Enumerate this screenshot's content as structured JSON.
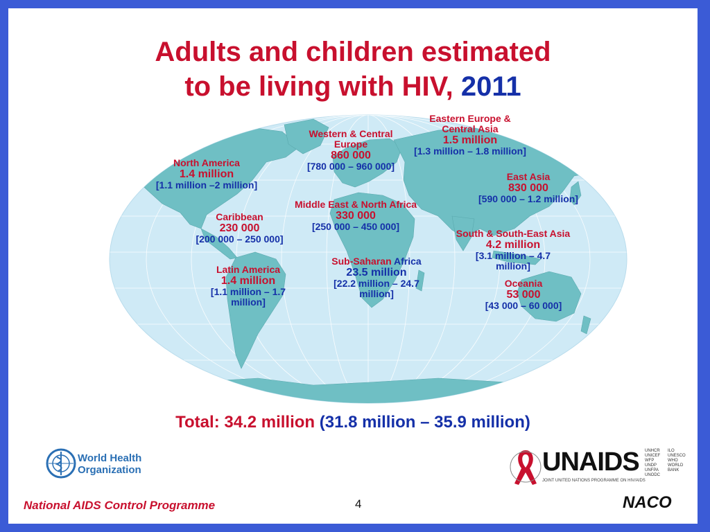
{
  "title": {
    "line1": "Adults and children estimated",
    "line2": "to be living with HIV,",
    "year": "2011"
  },
  "regions": [
    {
      "name": "North America",
      "value": "1.4 million",
      "range": "[1.1 million –2 million]"
    },
    {
      "name": "Caribbean",
      "value": "230 000",
      "range": "[200 000 – 250 000]"
    },
    {
      "name": "Latin America",
      "value": "1.4 million",
      "range": "[1.1 million – 1.7 million]"
    },
    {
      "name": "Western & Central Europe",
      "value": "860 000",
      "range": "[780 000 – 960 000]"
    },
    {
      "name": "Middle East & North Africa",
      "value": "330 000",
      "range": "[250 000 – 450 000]"
    },
    {
      "name": "Sub-Saharan",
      "name_suffix": "Africa",
      "value": "23.5 million",
      "range": "[22.2 million – 24.7 million]"
    },
    {
      "name": "Eastern Europe & Central Asia",
      "value": "1.5 million",
      "range": "[1.3 million – 1.8 million]"
    },
    {
      "name": "East Asia",
      "value": "830 000",
      "range": "[590 000 – 1.2 million]"
    },
    {
      "name": "South & South-East Asia",
      "value": "4.2 million",
      "range": "[3.1 million – 4.7 million]"
    },
    {
      "name": "Oceania",
      "value": "53 000",
      "range": "[43 000 – 60 000]"
    }
  ],
  "total": {
    "label": "Total:",
    "value": "34.2 million",
    "range": "(31.8 million – 35.9 million)"
  },
  "logos": {
    "who": {
      "line1": "World Health",
      "line2": "Organization"
    },
    "unaids": {
      "name": "UNAIDS",
      "subtitle": "JOINT UNITED NATIONS PROGRAMME ON HIV/AIDS",
      "cosponsors": [
        "UNHCR",
        "UNICEF",
        "WFP",
        "UNDP",
        "UNFPA",
        "UNODC",
        "ILO",
        "UNESCO",
        "WHO",
        "WORLD BANK"
      ]
    },
    "naco": "NACO"
  },
  "footer": {
    "program": "National AIDS Control Programme",
    "page_number": "4"
  },
  "colors": {
    "frame": "#3b5bd6",
    "title_red": "#c8102e",
    "value_blue": "#1530a8",
    "ocean": "#cfeaf6",
    "land": "#6fbfc4"
  }
}
